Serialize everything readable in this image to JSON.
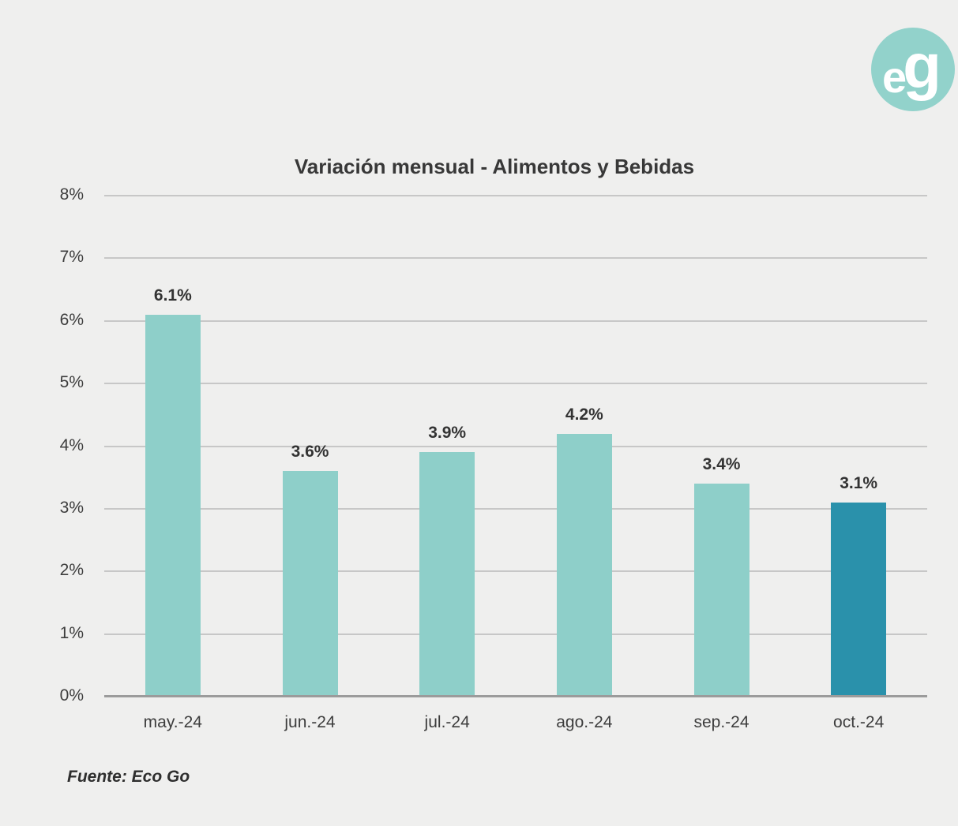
{
  "logo": {
    "text_e": "e",
    "text_g": "g",
    "background_color": "#92d2cb",
    "text_color": "#ffffff"
  },
  "chart_data": {
    "type": "bar",
    "title": "Variación mensual - Alimentos y Bebidas",
    "categories": [
      "may.-24",
      "jun.-24",
      "jul.-24",
      "ago.-24",
      "sep.-24",
      "oct.-24"
    ],
    "values": [
      6.1,
      3.6,
      3.9,
      4.2,
      3.4,
      3.1
    ],
    "data_labels": [
      "6.1%",
      "3.6%",
      "3.9%",
      "4.2%",
      "3.4%",
      "3.1%"
    ],
    "ytick_labels": [
      "0%",
      "1%",
      "2%",
      "3%",
      "4%",
      "5%",
      "6%",
      "7%",
      "8%"
    ],
    "ylim": [
      0,
      8
    ],
    "ytick_step": 1,
    "grid": true,
    "legend": "none",
    "xlabel": "",
    "ylabel": "",
    "bar_color": "#8ecfc9",
    "highlight_color": "#2a91ab",
    "highlight_index": 5
  },
  "source": {
    "label": "Fuente: Eco Go"
  }
}
